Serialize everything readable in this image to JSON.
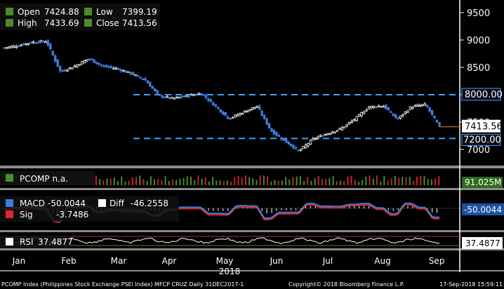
{
  "ohlc": {
    "open_label": "Open",
    "open_value": "7424.88",
    "high_label": "High",
    "high_value": "7433.69",
    "low_label": "Low",
    "low_value": "7399.19",
    "close_label": "Close",
    "close_value": "7413.56"
  },
  "price_axis": {
    "ticks": [
      "9500",
      "9000",
      "8500",
      "8000",
      "7500",
      "7000"
    ],
    "tick_values": [
      9500,
      9000,
      8500,
      8000,
      7500,
      7000
    ]
  },
  "levels": {
    "resistance": {
      "label": "8000.00",
      "value": 8000
    },
    "support": {
      "label": "7200.00",
      "value": 7200
    },
    "last": {
      "label": "7413.56",
      "value": 7413.56
    }
  },
  "volume_panel": {
    "legend": "PCOMP  n.a.",
    "value_label": "91.025M"
  },
  "macd_panel": {
    "macd_label": "MACD",
    "macd_value": "-50.0044",
    "diff_label": "Diff",
    "diff_value": "-46.2558",
    "sig_label": "Sig",
    "sig_value": "-3.7486",
    "value_label": "-50.0044"
  },
  "rsi_panel": {
    "label": "RSI",
    "value": "37.4877",
    "value_label": "37.4877"
  },
  "x_axis": {
    "months": [
      "Jan",
      "Feb",
      "Mar",
      "Apr",
      "May",
      "Jun",
      "Jul",
      "Aug",
      "Sep"
    ],
    "year": "2018"
  },
  "footer": {
    "left": "PCOMP Index (Philippines Stock Exchange PSEi Index) MFCP CRUZ  Daily 31DEC2017-1",
    "center": "Copyright© 2018 Bloomberg Finance L.P.",
    "right": "17-Sep-2018 15:59:11"
  },
  "colors": {
    "up": "#ffffff",
    "down": "#3d7ddb",
    "level_line": "#3da3ff",
    "macd": "#3d7ddb",
    "sig": "#e0262a",
    "rsi": "#ffffff",
    "legend_swatch": "#4b8b2a",
    "volume_up": "#4b8b2a",
    "volume_down": "#c0262a"
  },
  "chart_data": {
    "type": "candlestick",
    "title": "PCOMP Index (Philippines Stock Exchange PSEi Index)",
    "x_label": "2018",
    "y_ticks": [
      7000,
      7500,
      8000,
      8500,
      9000,
      9500
    ],
    "ylim": [
      6850,
      9600
    ],
    "x": [
      "Jan",
      "Jan",
      "Jan",
      "Jan",
      "Feb",
      "Feb",
      "Feb",
      "Feb",
      "Mar",
      "Mar",
      "Mar",
      "Mar",
      "Apr",
      "Apr",
      "Apr",
      "May",
      "May",
      "May",
      "May",
      "Jun",
      "Jun",
      "Jun",
      "Jul",
      "Jul",
      "Jul",
      "Jul",
      "Aug",
      "Aug",
      "Aug",
      "Aug",
      "Sep",
      "Sep"
    ],
    "close": [
      8860,
      8900,
      8960,
      8980,
      8420,
      8520,
      8660,
      8520,
      8480,
      8390,
      8280,
      7980,
      7930,
      7980,
      8030,
      7800,
      7560,
      7680,
      7790,
      7340,
      7150,
      6970,
      7190,
      7290,
      7380,
      7560,
      7780,
      7800,
      7550,
      7780,
      7820,
      7414
    ],
    "levels": [
      8000,
      7200
    ]
  }
}
